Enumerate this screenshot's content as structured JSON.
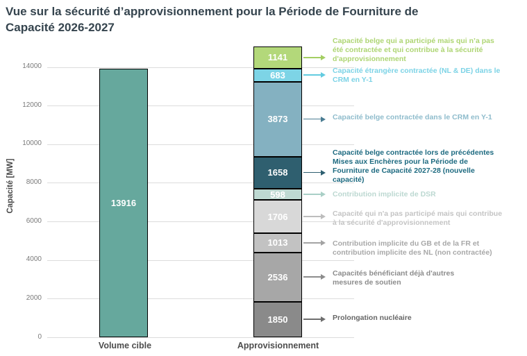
{
  "chart_data": {
    "type": "bar",
    "stacked": true,
    "title": "Vue sur la sécurité d’approvisionnement pour la Période de Fourniture de\nCapacité 2026-2027",
    "ylabel": "Capacité [MW]",
    "xlabel": "",
    "ylim": [
      0,
      14000
    ],
    "yticks": [
      0,
      2000,
      4000,
      6000,
      8000,
      10000,
      12000,
      14000
    ],
    "grid": "horizontal",
    "legend": "right-annotations",
    "categories": [
      "Volume cible",
      "Approvisionnement"
    ],
    "bars": [
      {
        "category": "Volume cible",
        "total": 13916,
        "segments_top_to_bottom": [
          {
            "value": 13916,
            "color": "#66a89d",
            "annotation": null
          }
        ]
      },
      {
        "category": "Approvisionnement",
        "total": 15058,
        "segments_top_to_bottom": [
          {
            "value": 1141,
            "color": "#b3d87a",
            "annotation": {
              "lines": [
                "Capacité belge qui a participé mais qui n’a pas",
                "été contractée et qui contribue à la sécurité",
                "d'approvisionnement"
              ],
              "color": "#aed573",
              "arrow_color": "#a3ce62"
            }
          },
          {
            "value": 683,
            "color": "#7dd4e6",
            "annotation": {
              "lines": [
                "Capacité étrangère contractée (NL & DE) dans le",
                "CRM en Y-1"
              ],
              "color": "#7cd3e6",
              "arrow_color": "#62cbe0"
            }
          },
          {
            "value": 3873,
            "color": "#84b1c1",
            "annotation": {
              "lines": [
                "Capacité belge contractée dans le CRM en Y-1"
              ],
              "color": "#8fbccc",
              "arrow_color": "#4a7c92"
            }
          },
          {
            "value": 1658,
            "color": "#2f5f6f",
            "annotation": {
              "lines": [
                "Capacité belge contractée lors de précédentes",
                "Mises aux Enchères pour la Période de",
                "Fourniture de Capacité 2027-28 (nouvelle",
                "capacité)"
              ],
              "color": "#1d6a80",
              "arrow_color": "#2e5f70"
            }
          },
          {
            "value": 598,
            "color": "#bed9d2",
            "annotation": {
              "lines": [
                "Contribution implicite de DSR"
              ],
              "color": "#bcd8d1",
              "arrow_color": "#a9cfc6"
            }
          },
          {
            "value": 1706,
            "color": "#d8d8d8",
            "annotation": {
              "lines": [
                "Capacité qui n'a pas participé mais qui contribue",
                "à la sécurité d'approvisionnement"
              ],
              "color": "#c4c4c4",
              "arrow_color": "#bdbdbd"
            }
          },
          {
            "value": 1013,
            "color": "#c2c2c2",
            "annotation": {
              "lines": [
                "Contribution implicite du GB et de la FR et",
                "contribution implicite des NL (non contractée)"
              ],
              "color": "#a8a8a8",
              "arrow_color": "#a3a3a3"
            }
          },
          {
            "value": 2536,
            "color": "#a7a7a7",
            "annotation": {
              "lines": [
                "Capacités bénéficiant déjà d'autres",
                "mesures de soutien"
              ],
              "color": "#8c8c8c",
              "arrow_color": "#8c8c8c"
            }
          },
          {
            "value": 1850,
            "color": "#8a8a8a",
            "annotation": {
              "lines": [
                "Prolongation nucléaire"
              ],
              "color": "#666666",
              "arrow_color": "#6e6e6e"
            }
          }
        ]
      }
    ]
  }
}
